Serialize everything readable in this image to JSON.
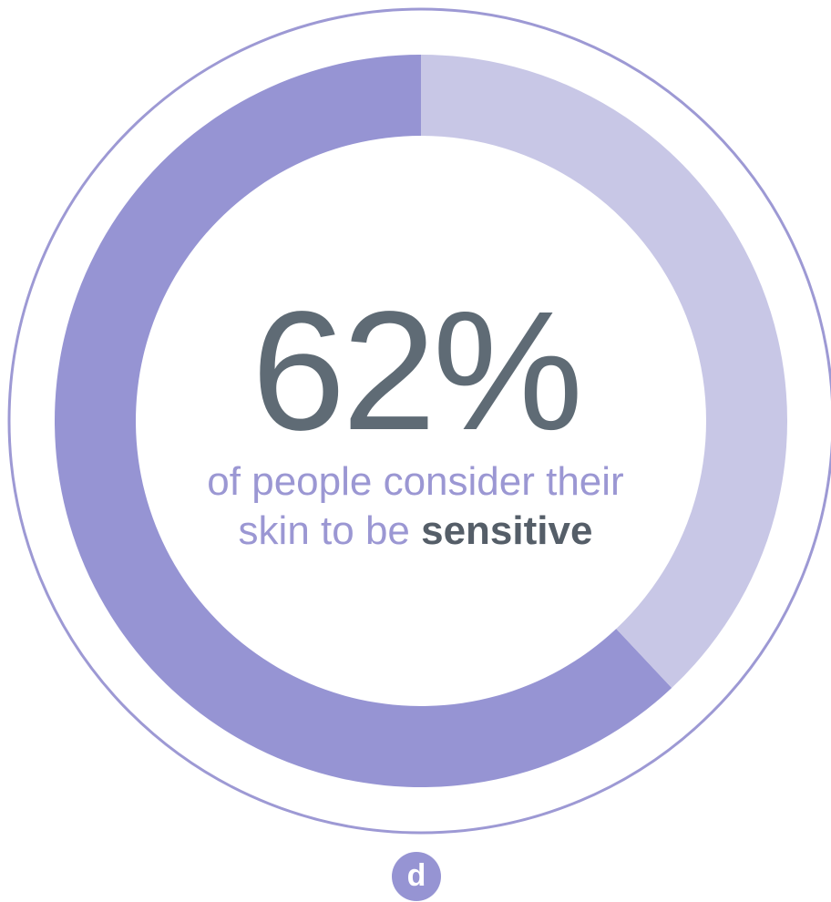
{
  "colors": {
    "filled_arc": "#9694d3",
    "remaining_arc": "#c8c7e6",
    "outer_ring": "#9d99d4",
    "value_text": "#5f6b75",
    "caption_text": "#9b97d3",
    "emphasis_text": "#555e68",
    "logo_bg": "#9694d3"
  },
  "chart_data": {
    "type": "pie",
    "style": "donut",
    "slices": [
      {
        "value": 62,
        "color": "#9694d3"
      },
      {
        "value": 38,
        "color": "#c8c7e6"
      }
    ],
    "center_value": "62%",
    "caption_line1": "of people consider their",
    "caption_line2_prefix": "skin to be ",
    "caption_line2_emphasis": "sensitive"
  },
  "logo": {
    "icon": "d-logo-icon",
    "letter": "d"
  }
}
